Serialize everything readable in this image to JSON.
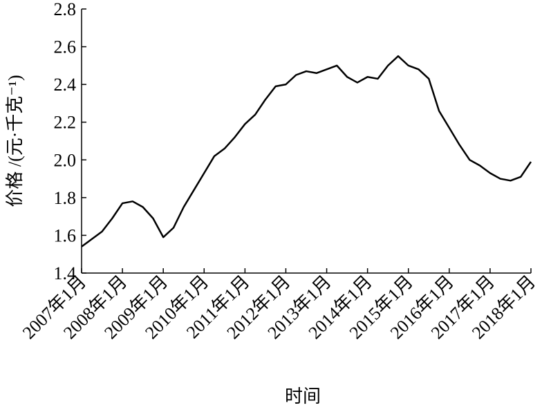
{
  "chart_data": {
    "type": "line",
    "xlabel": "时间",
    "ylabel": "价格 /(元·千克⁻¹)",
    "x": [
      "2007-01",
      "2007-04",
      "2007-07",
      "2007-10",
      "2008-01",
      "2008-04",
      "2008-07",
      "2008-10",
      "2009-01",
      "2009-04",
      "2009-07",
      "2009-10",
      "2010-01",
      "2010-04",
      "2010-07",
      "2010-10",
      "2011-01",
      "2011-04",
      "2011-07",
      "2011-10",
      "2012-01",
      "2012-04",
      "2012-07",
      "2012-10",
      "2013-01",
      "2013-04",
      "2013-07",
      "2013-10",
      "2014-01",
      "2014-04",
      "2014-07",
      "2014-10",
      "2015-01",
      "2015-04",
      "2015-07",
      "2015-10",
      "2016-01",
      "2016-04",
      "2016-07",
      "2016-10",
      "2017-01",
      "2017-04",
      "2017-07",
      "2017-10",
      "2018-01"
    ],
    "series": [
      {
        "color": "#000000",
        "values": [
          1.54,
          1.58,
          1.62,
          1.69,
          1.77,
          1.78,
          1.75,
          1.69,
          1.59,
          1.64,
          1.75,
          1.84,
          1.93,
          2.02,
          2.06,
          2.12,
          2.19,
          2.24,
          2.32,
          2.39,
          2.4,
          2.45,
          2.47,
          2.46,
          2.48,
          2.5,
          2.44,
          2.41,
          2.44,
          2.43,
          2.5,
          2.55,
          2.5,
          2.48,
          2.43,
          2.26,
          2.17,
          2.08,
          2.0,
          1.97,
          1.93,
          1.9,
          1.89,
          1.91,
          1.99
        ]
      }
    ],
    "xlim": [
      "2007-01",
      "2018-01"
    ],
    "xticks": [
      {
        "value": "2007-01",
        "label": "2007年1月"
      },
      {
        "value": "2008-01",
        "label": "2008年1月"
      },
      {
        "value": "2009-01",
        "label": "2009年1月"
      },
      {
        "value": "2010-01",
        "label": "2010年1月"
      },
      {
        "value": "2011-01",
        "label": "2011年1月"
      },
      {
        "value": "2012-01",
        "label": "2012年1月"
      },
      {
        "value": "2013-01",
        "label": "2013年1月"
      },
      {
        "value": "2014-01",
        "label": "2014年1月"
      },
      {
        "value": "2015-01",
        "label": "2015年1月"
      },
      {
        "value": "2016-01",
        "label": "2016年1月"
      },
      {
        "value": "2017-01",
        "label": "2017年1月"
      },
      {
        "value": "2018-01",
        "label": "2018年1月"
      }
    ],
    "ylim": [
      1.4,
      2.8
    ],
    "yticks": [
      1.4,
      1.6,
      1.8,
      {
        "value": 2.0,
        "label": "2.0"
      },
      2.2,
      2.4,
      2.6,
      2.8
    ],
    "grid": false
  }
}
